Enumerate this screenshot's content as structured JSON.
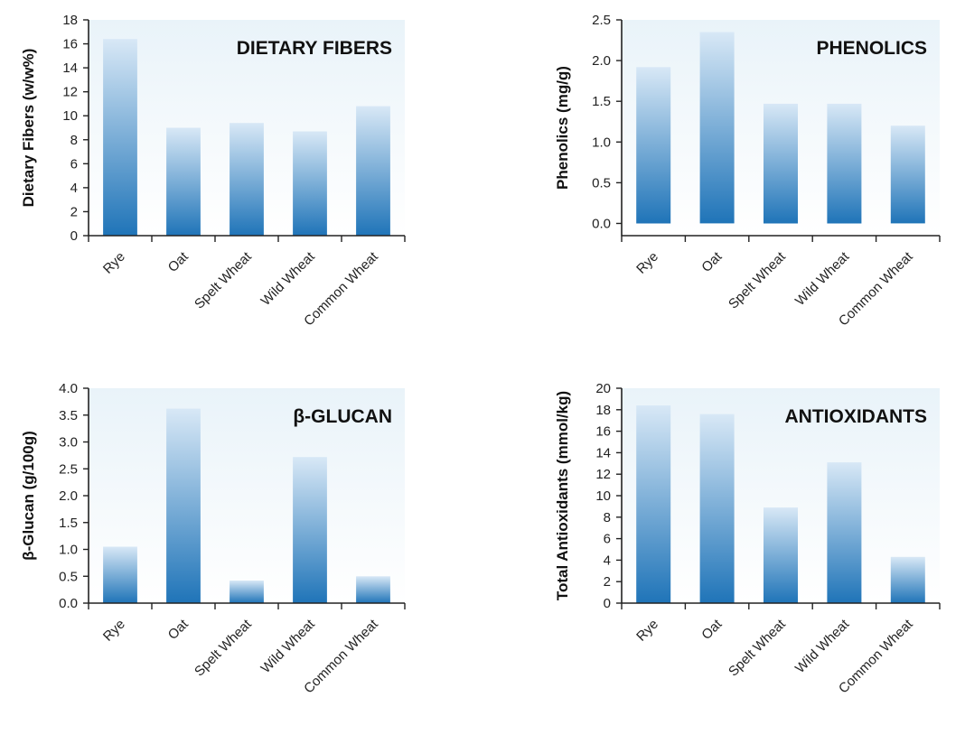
{
  "colors": {
    "bar_top": "#d8e8f6",
    "bar_bottom": "#1f74b8",
    "plot_bg_top": "#e9f3f9",
    "plot_bg_bottom": "#ffffff",
    "axis": "#222222"
  },
  "chart_data": [
    {
      "type": "bar",
      "title": "DIETARY FIBERS",
      "xlabel": "",
      "ylabel": "Dietary Fibers (w/w%)",
      "categories": [
        "Rye",
        "Oat",
        "Spelt Wheat",
        "Wild Wheat",
        "Common Wheat"
      ],
      "values": [
        16.4,
        9.0,
        9.4,
        8.7,
        10.8
      ],
      "ylim": [
        0,
        18
      ],
      "yticks": [
        "0",
        "2",
        "4",
        "6",
        "8",
        "10",
        "12",
        "14",
        "16",
        "18"
      ],
      "grid": false
    },
    {
      "type": "bar",
      "title": "PHENOLICS",
      "xlabel": "",
      "ylabel": "Phenolics (mg/g)",
      "categories": [
        "Rye",
        "Oat",
        "Spelt Wheat",
        "Wild Wheat",
        "Common Wheat"
      ],
      "values": [
        1.92,
        2.35,
        1.47,
        1.47,
        1.2
      ],
      "ylim": [
        -0.15,
        2.5
      ],
      "yticks": [
        "0.0",
        "0.5",
        "1.0",
        "1.5",
        "2.0",
        "2.5"
      ],
      "grid": false
    },
    {
      "type": "bar",
      "title": "β-GLUCAN",
      "xlabel": "",
      "ylabel": "β-Glucan (g/100g)",
      "categories": [
        "Rye",
        "Oat",
        "Spelt Wheat",
        "Wild Wheat",
        "Common Wheat"
      ],
      "values": [
        1.05,
        3.62,
        0.42,
        2.72,
        0.5
      ],
      "ylim": [
        0,
        4.0
      ],
      "yticks": [
        "0.0",
        "0.5",
        "1.0",
        "1.5",
        "2.0",
        "2.5",
        "3.0",
        "3.5",
        "4.0"
      ],
      "grid": false
    },
    {
      "type": "bar",
      "title": "ANTIOXIDANTS",
      "xlabel": "",
      "ylabel": "Total Antioxidants (mmol/kg)",
      "categories": [
        "Rye",
        "Oat",
        "Spelt Wheat",
        "Wild Wheat",
        "Common Wheat"
      ],
      "values": [
        18.4,
        17.6,
        8.9,
        13.1,
        4.3
      ],
      "ylim": [
        0,
        20
      ],
      "yticks": [
        "0",
        "2",
        "4",
        "6",
        "8",
        "10",
        "12",
        "14",
        "16",
        "18",
        "20"
      ],
      "grid": false
    }
  ]
}
